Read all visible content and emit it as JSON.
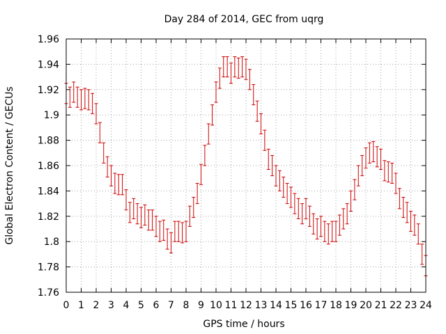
{
  "chart_data": {
    "type": "line",
    "title": "Day 284 of 2014, GEC from uqrg",
    "xlabel": "GPS time / hours",
    "ylabel": "Global Electron Content / GECUs",
    "xlim": [
      0,
      24
    ],
    "ylim": [
      1.76,
      1.96
    ],
    "xticks": [
      "0",
      "1",
      "2",
      "3",
      "4",
      "5",
      "6",
      "7",
      "8",
      "9",
      "10",
      "11",
      "12",
      "13",
      "14",
      "15",
      "16",
      "17",
      "18",
      "19",
      "20",
      "21",
      "22",
      "23",
      "24"
    ],
    "yticks": [
      "1.76",
      "1.78",
      "1.8",
      "1.82",
      "1.84",
      "1.86",
      "1.88",
      "1.9",
      "1.92",
      "1.94",
      "1.96"
    ],
    "grid": true,
    "series_color": "#cc0000",
    "error": 0.008,
    "x": [
      0,
      0.25,
      0.5,
      0.75,
      1,
      1.25,
      1.5,
      1.75,
      2,
      2.25,
      2.5,
      2.75,
      3,
      3.25,
      3.5,
      3.75,
      4,
      4.25,
      4.5,
      4.75,
      5,
      5.25,
      5.5,
      5.75,
      6,
      6.25,
      6.5,
      6.75,
      7,
      7.25,
      7.5,
      7.75,
      8,
      8.25,
      8.5,
      8.75,
      9,
      9.25,
      9.5,
      9.75,
      10,
      10.25,
      10.5,
      10.75,
      11,
      11.25,
      11.5,
      11.75,
      12,
      12.25,
      12.5,
      12.75,
      13,
      13.25,
      13.5,
      13.75,
      14,
      14.25,
      14.5,
      14.75,
      15,
      15.25,
      15.5,
      15.75,
      16,
      16.25,
      16.5,
      16.75,
      17,
      17.25,
      17.5,
      17.75,
      18,
      18.25,
      18.5,
      18.75,
      19,
      19.25,
      19.5,
      19.75,
      20,
      20.25,
      20.5,
      20.75,
      21,
      21.25,
      21.5,
      21.75,
      22,
      22.25,
      22.5,
      22.75,
      23,
      23.25,
      23.5,
      23.75,
      24
    ],
    "y": [
      1.917,
      1.914,
      1.918,
      1.914,
      1.912,
      1.913,
      1.912,
      1.909,
      1.901,
      1.886,
      1.87,
      1.859,
      1.852,
      1.846,
      1.845,
      1.845,
      1.833,
      1.823,
      1.826,
      1.822,
      1.819,
      1.821,
      1.817,
      1.817,
      1.812,
      1.808,
      1.809,
      1.802,
      1.799,
      1.808,
      1.808,
      1.807,
      1.808,
      1.82,
      1.827,
      1.838,
      1.853,
      1.868,
      1.885,
      1.9,
      1.918,
      1.929,
      1.938,
      1.938,
      1.933,
      1.938,
      1.937,
      1.938,
      1.936,
      1.928,
      1.916,
      1.903,
      1.893,
      1.88,
      1.865,
      1.86,
      1.852,
      1.848,
      1.843,
      1.838,
      1.835,
      1.83,
      1.826,
      1.822,
      1.826,
      1.82,
      1.814,
      1.81,
      1.812,
      1.808,
      1.806,
      1.808,
      1.808,
      1.813,
      1.818,
      1.822,
      1.832,
      1.841,
      1.852,
      1.86,
      1.866,
      1.87,
      1.871,
      1.867,
      1.865,
      1.856,
      1.855,
      1.854,
      1.846,
      1.834,
      1.827,
      1.823,
      1.816,
      1.813,
      1.806,
      1.79,
      1.781
    ]
  }
}
